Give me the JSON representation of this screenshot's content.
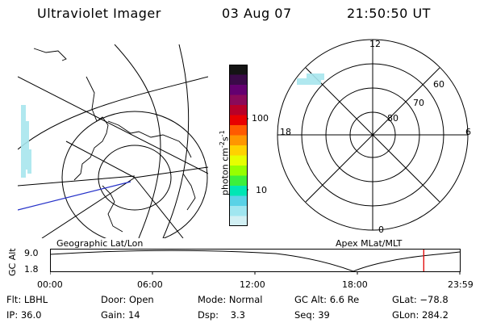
{
  "header": {
    "title": "Ultraviolet Imager",
    "date": "03 Aug 07",
    "time": "21:50:50 UT"
  },
  "colorbar": {
    "unit_label": "photon cm",
    "unit_sup1": "-2",
    "unit_mid": "s",
    "unit_sup2": "-1",
    "ticks": [
      "100",
      "10"
    ],
    "colors": [
      "#141414",
      "#3a0a48",
      "#640070",
      "#8a0a5a",
      "#b80028",
      "#e80000",
      "#ff5a00",
      "#ff9600",
      "#ffd200",
      "#e6ff00",
      "#96ff00",
      "#3cf03c",
      "#00e6b4",
      "#5ad2e6",
      "#a0e6f0",
      "#d2f0f4"
    ]
  },
  "left_map": {
    "caption": "Geographic Lat/Lon"
  },
  "right_map": {
    "caption": "Apex MLat/MLT",
    "lat_labels": [
      "80",
      "70",
      "60"
    ],
    "mlt_labels": {
      "top": "12",
      "bottom": "0",
      "left": "18",
      "right": "6"
    }
  },
  "timeline": {
    "axis_label": "GC Alt",
    "y_top": "9.0",
    "y_bottom": "1.8",
    "x_ticks": [
      "00:00",
      "06:00",
      "12:00",
      "18:00",
      "23:59"
    ],
    "current_time_fraction": 0.912
  },
  "info": {
    "flt_label": "Flt:",
    "flt_value": "LBHL",
    "ip_label": "IP:",
    "ip_value": "36.0",
    "door_label": "Door:",
    "door_value": "Open",
    "gain_label": "Gain:",
    "gain_value": "14",
    "mode_label": "Mode:",
    "mode_value": "Normal",
    "dsp_label": "Dsp:",
    "dsp_value": "3.3",
    "gcalt_label": "GC Alt:",
    "gcalt_value": "6.6 Re",
    "seq_label": "Seq:",
    "seq_value": "39",
    "glat_label": "GLat:",
    "glat_value": "−78.8",
    "glon_label": "GLon:",
    "glon_value": "284.2"
  }
}
